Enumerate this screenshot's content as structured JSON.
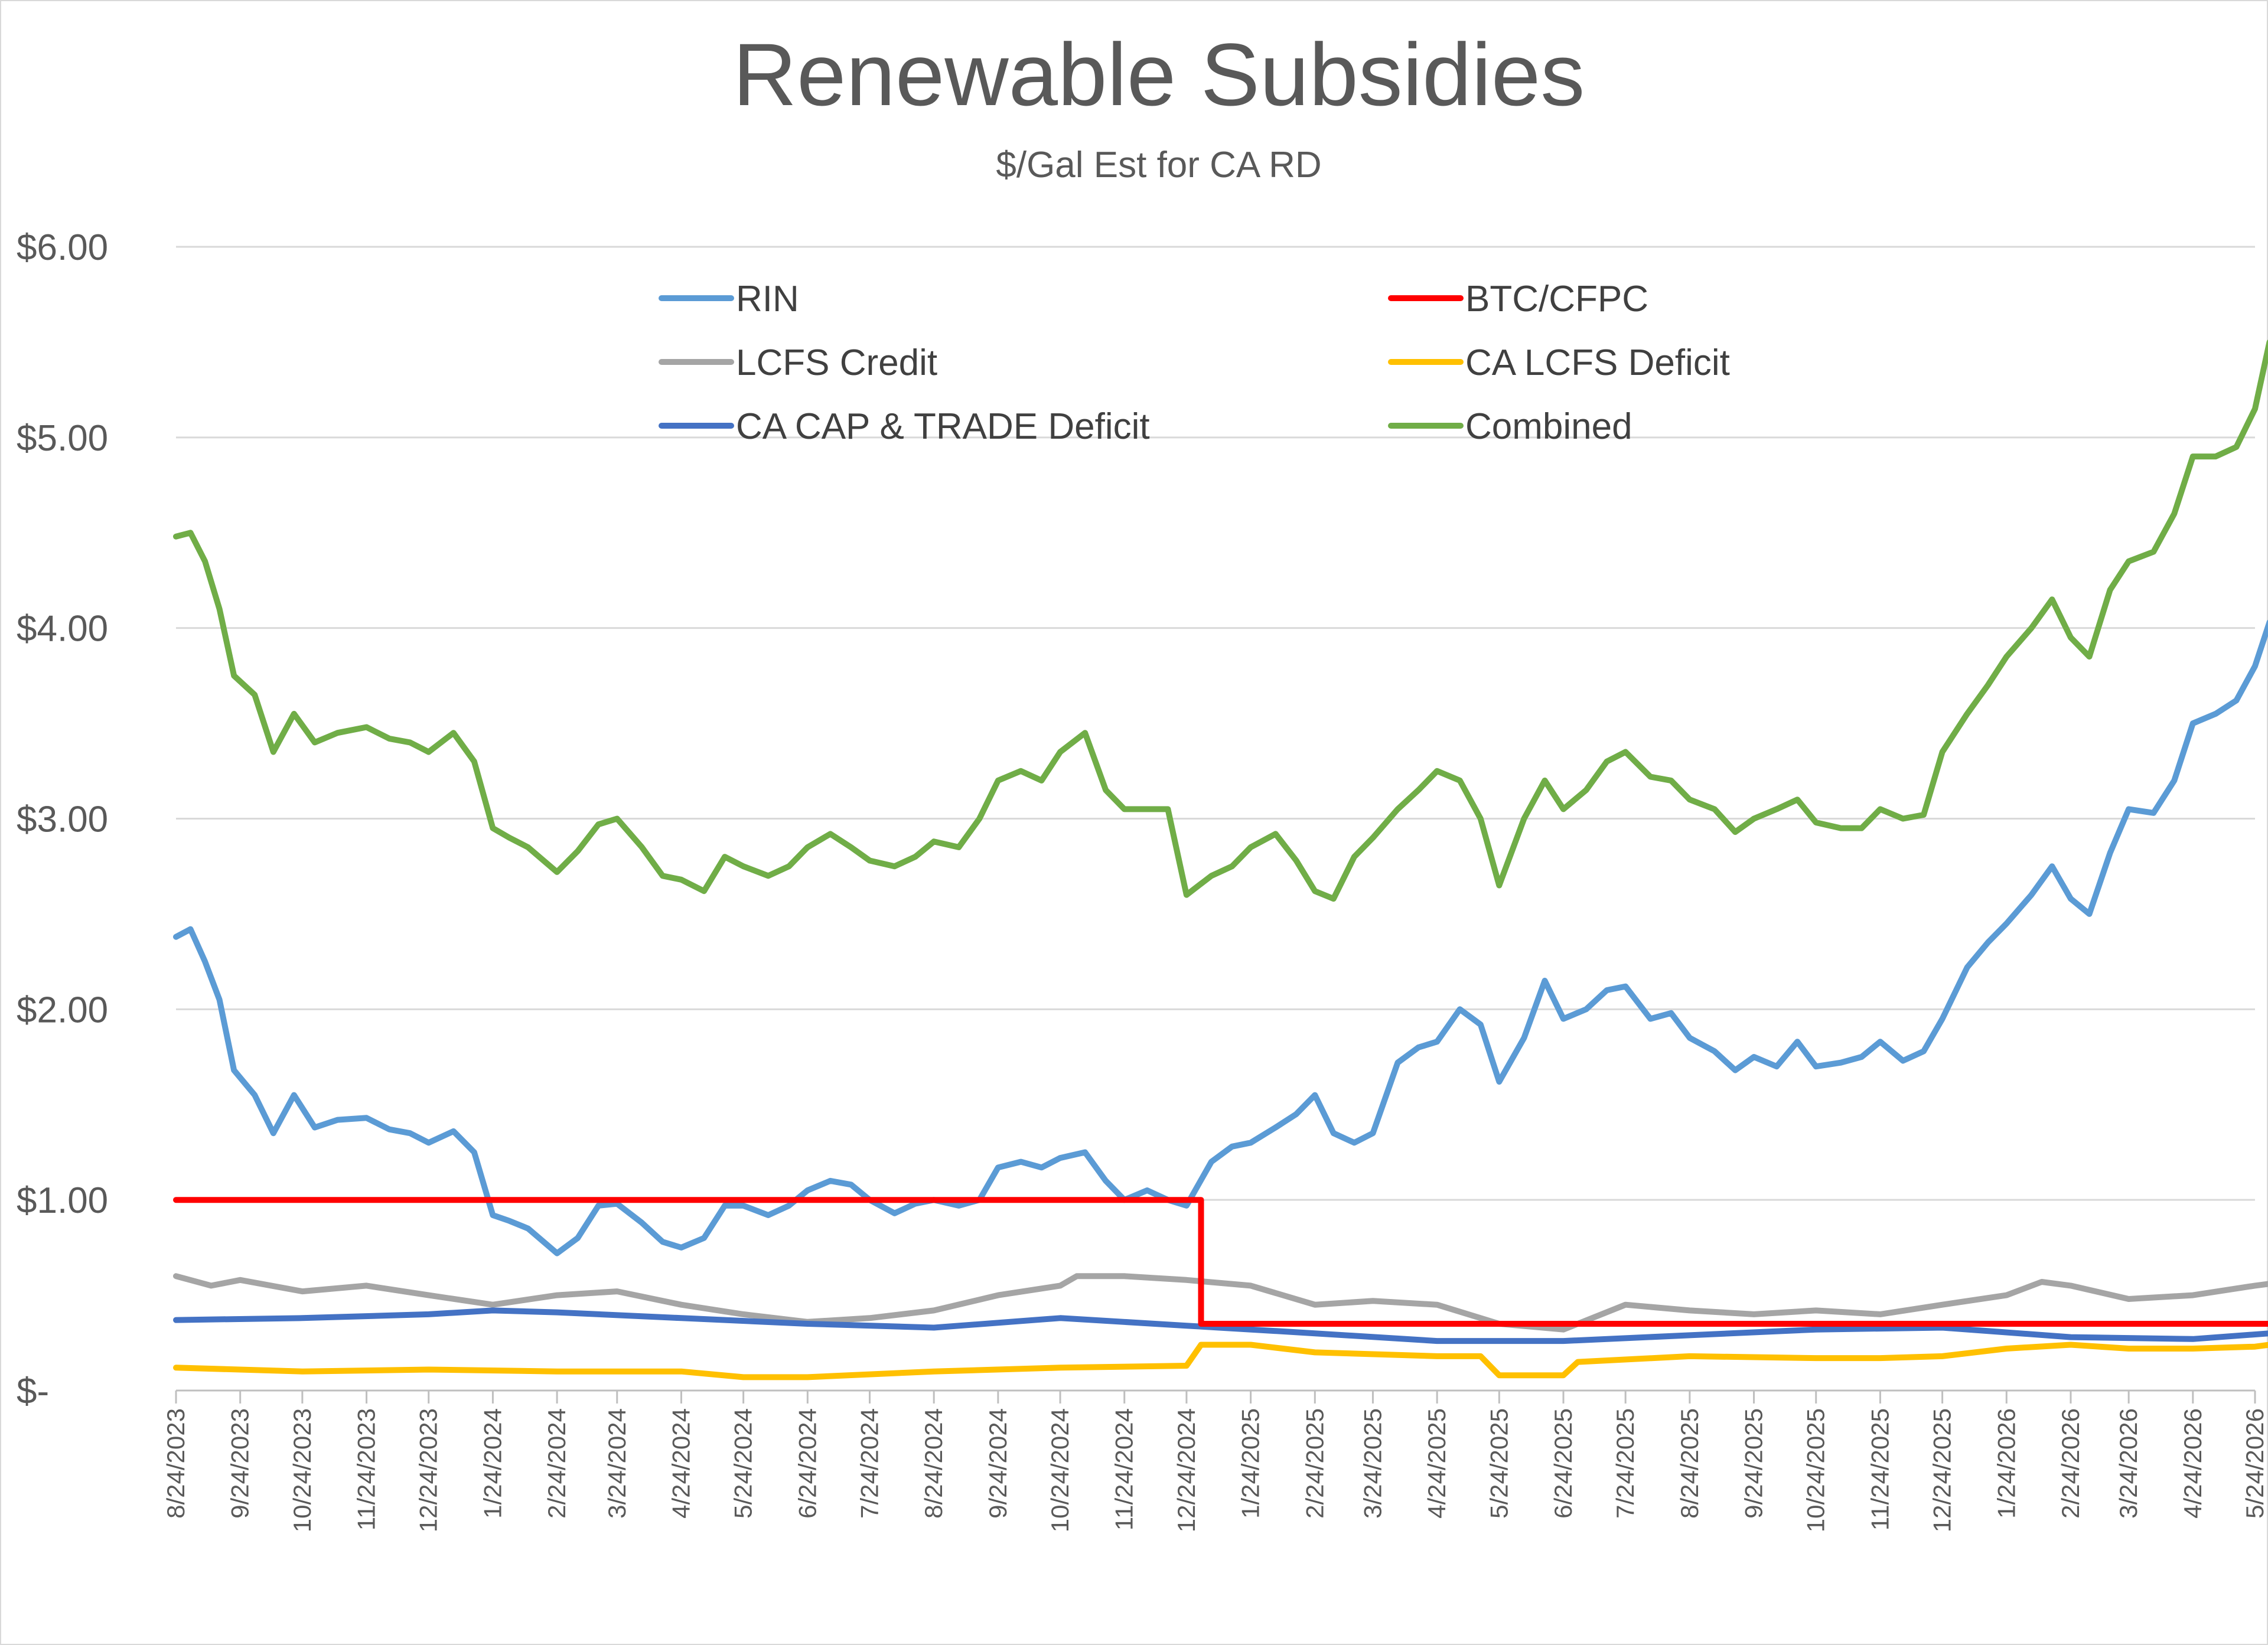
{
  "chart_data": {
    "type": "line",
    "title": "Renewable Subsidies",
    "subtitle": "$/Gal Est for CA RD",
    "xlabel": "",
    "ylabel": "",
    "ylim": [
      0,
      6
    ],
    "y_ticks": [
      {
        "value": 0,
        "label": "$-"
      },
      {
        "value": 1,
        "label": "$1.00"
      },
      {
        "value": 2,
        "label": "$2.00"
      },
      {
        "value": 3,
        "label": "$3.00"
      },
      {
        "value": 4,
        "label": "$4.00"
      },
      {
        "value": 5,
        "label": "$5.00"
      },
      {
        "value": 6,
        "label": "$6.00"
      }
    ],
    "x_ticks": [
      "8/24/2023",
      "9/24/2023",
      "10/24/2023",
      "11/24/2023",
      "12/24/2023",
      "1/24/2024",
      "2/24/2024",
      "3/24/2024",
      "4/24/2024",
      "5/24/2024",
      "6/24/2024",
      "7/24/2024",
      "8/24/2024",
      "9/24/2024",
      "10/24/2024",
      "11/24/2024",
      "12/24/2024",
      "1/24/2025",
      "2/24/2025",
      "3/24/2025",
      "4/24/2025",
      "5/24/2025",
      "6/24/2025",
      "7/24/2025",
      "8/24/2025",
      "9/24/2025",
      "10/24/2025",
      "11/24/2025",
      "12/24/2025",
      "1/24/2026",
      "2/24/2026",
      "3/24/2026",
      "4/24/2026",
      "5/24/2026"
    ],
    "grid": true,
    "legend_position": "top",
    "series": [
      {
        "name": "RIN",
        "color": "#5b9bd5",
        "x": [
          "8/24/2023",
          "8/31/2023",
          "9/7/2023",
          "9/14/2023",
          "9/21/2023",
          "10/1/2023",
          "10/10/2023",
          "10/20/2023",
          "10/30/2023",
          "11/10/2023",
          "11/24/2023",
          "12/5/2023",
          "12/15/2023",
          "12/24/2023",
          "1/5/2024",
          "1/15/2024",
          "1/24/2024",
          "2/1/2024",
          "2/10/2024",
          "2/24/2024",
          "3/5/2024",
          "3/15/2024",
          "3/24/2024",
          "4/5/2024",
          "4/15/2024",
          "4/24/2024",
          "5/5/2024",
          "5/15/2024",
          "5/24/2024",
          "6/5/2024",
          "6/15/2024",
          "6/24/2024",
          "7/5/2024",
          "7/15/2024",
          "7/24/2024",
          "8/5/2024",
          "8/15/2024",
          "8/24/2024",
          "9/5/2024",
          "9/15/2024",
          "9/24/2024",
          "10/5/2024",
          "10/15/2024",
          "10/24/2024",
          "11/5/2024",
          "11/15/2024",
          "11/24/2024",
          "12/5/2024",
          "12/15/2024",
          "12/24/2024",
          "1/5/2025",
          "1/15/2025",
          "1/24/2025",
          "2/5/2025",
          "2/15/2025",
          "2/24/2025",
          "3/5/2025",
          "3/15/2025",
          "3/24/2025",
          "4/5/2025",
          "4/15/2025",
          "4/24/2025",
          "5/5/2025",
          "5/15/2025",
          "5/24/2025",
          "6/5/2025",
          "6/15/2025",
          "6/24/2025",
          "7/5/2025",
          "7/15/2025",
          "7/24/2025",
          "8/5/2025",
          "8/15/2025",
          "8/24/2025",
          "9/5/2025",
          "9/15/2025",
          "9/24/2025",
          "10/5/2025",
          "10/15/2025",
          "10/24/2025",
          "11/5/2025",
          "11/15/2025",
          "11/24/2025",
          "12/5/2025",
          "12/15/2025",
          "12/24/2025",
          "1/5/2026",
          "1/15/2026",
          "1/24/2026",
          "2/5/2026",
          "2/15/2026",
          "2/24/2026",
          "3/5/2026",
          "3/15/2026",
          "3/24/2026",
          "4/5/2026",
          "4/15/2026",
          "4/24/2026",
          "5/5/2026",
          "5/15/2026",
          "5/24/2026",
          "5/31/2026"
        ],
        "values": [
          2.38,
          2.42,
          2.25,
          2.05,
          1.68,
          1.55,
          1.35,
          1.55,
          1.38,
          1.42,
          1.43,
          1.37,
          1.35,
          1.3,
          1.36,
          1.25,
          0.92,
          0.89,
          0.85,
          0.72,
          0.8,
          0.97,
          0.98,
          0.88,
          0.78,
          0.75,
          0.8,
          0.97,
          0.97,
          0.92,
          0.97,
          1.05,
          1.1,
          1.08,
          1.0,
          0.93,
          0.98,
          1.0,
          0.97,
          1.0,
          1.17,
          1.2,
          1.17,
          1.22,
          1.25,
          1.1,
          1.0,
          1.05,
          1.0,
          0.97,
          1.2,
          1.28,
          1.3,
          1.38,
          1.45,
          1.55,
          1.35,
          1.3,
          1.35,
          1.72,
          1.8,
          1.83,
          2.0,
          1.92,
          1.62,
          1.85,
          2.15,
          1.95,
          2.0,
          2.1,
          2.12,
          1.95,
          1.98,
          1.85,
          1.78,
          1.68,
          1.75,
          1.7,
          1.83,
          1.7,
          1.72,
          1.75,
          1.83,
          1.73,
          1.78,
          1.95,
          2.22,
          2.35,
          2.45,
          2.6,
          2.75,
          2.58,
          2.5,
          2.82,
          3.05,
          3.03,
          3.2,
          3.5,
          3.55,
          3.62,
          3.8,
          4.03
        ]
      },
      {
        "name": "BTC/CFPC",
        "color": "#ff0000",
        "x": [
          "8/24/2023",
          "12/31/2024",
          "12/31/2024",
          "5/31/2026"
        ],
        "values": [
          1.0,
          1.0,
          0.35,
          0.35
        ]
      },
      {
        "name": "LCFS Credit",
        "color": "#a5a5a5",
        "x": [
          "8/24/2023",
          "9/10/2023",
          "9/24/2023",
          "10/24/2023",
          "11/24/2023",
          "12/24/2023",
          "1/24/2024",
          "2/24/2024",
          "3/24/2024",
          "4/24/2024",
          "5/24/2024",
          "6/24/2024",
          "7/24/2024",
          "8/24/2024",
          "9/24/2024",
          "10/24/2024",
          "11/1/2024",
          "11/24/2024",
          "12/24/2024",
          "1/24/2025",
          "2/24/2025",
          "3/24/2025",
          "4/24/2025",
          "5/24/2025",
          "6/24/2025",
          "7/24/2025",
          "8/24/2025",
          "9/24/2025",
          "10/24/2025",
          "11/24/2025",
          "12/24/2025",
          "1/24/2026",
          "2/10/2026",
          "2/24/2026",
          "3/24/2026",
          "4/24/2026",
          "5/24/2026",
          "5/31/2026"
        ],
        "values": [
          0.6,
          0.55,
          0.58,
          0.52,
          0.55,
          0.5,
          0.45,
          0.5,
          0.52,
          0.45,
          0.4,
          0.36,
          0.38,
          0.42,
          0.5,
          0.55,
          0.6,
          0.6,
          0.58,
          0.55,
          0.45,
          0.47,
          0.45,
          0.35,
          0.32,
          0.45,
          0.42,
          0.4,
          0.42,
          0.4,
          0.45,
          0.5,
          0.57,
          0.55,
          0.48,
          0.5,
          0.55,
          0.56
        ]
      },
      {
        "name": "CA LCFS Deficit",
        "color": "#ffc000",
        "x": [
          "8/24/2023",
          "10/24/2023",
          "12/24/2023",
          "2/24/2024",
          "4/24/2024",
          "5/24/2024",
          "6/24/2024",
          "8/24/2024",
          "10/24/2024",
          "12/24/2024",
          "12/31/2024",
          "1/24/2025",
          "2/24/2025",
          "4/24/2025",
          "5/15/2025",
          "5/24/2025",
          "6/24/2025",
          "7/1/2025",
          "8/24/2025",
          "10/24/2025",
          "11/24/2025",
          "12/24/2025",
          "1/24/2026",
          "2/24/2026",
          "3/24/2026",
          "4/24/2026",
          "5/24/2026",
          "5/31/2026"
        ],
        "values": [
          0.12,
          0.1,
          0.11,
          0.1,
          0.1,
          0.07,
          0.07,
          0.1,
          0.12,
          0.13,
          0.24,
          0.24,
          0.2,
          0.18,
          0.18,
          0.08,
          0.08,
          0.15,
          0.18,
          0.17,
          0.17,
          0.18,
          0.22,
          0.24,
          0.22,
          0.22,
          0.23,
          0.24
        ]
      },
      {
        "name": "CA CAP & TRADE Deficit",
        "color": "#4472c4",
        "x": [
          "8/24/2023",
          "10/24/2023",
          "12/24/2023",
          "1/24/2024",
          "2/24/2024",
          "4/24/2024",
          "6/24/2024",
          "8/24/2024",
          "10/24/2024",
          "12/24/2024",
          "2/24/2025",
          "4/24/2025",
          "6/24/2025",
          "8/24/2025",
          "10/24/2025",
          "12/24/2025",
          "2/24/2026",
          "4/24/2026",
          "5/31/2026"
        ],
        "values": [
          0.37,
          0.38,
          0.4,
          0.42,
          0.41,
          0.38,
          0.35,
          0.33,
          0.38,
          0.34,
          0.3,
          0.26,
          0.26,
          0.29,
          0.32,
          0.33,
          0.28,
          0.27,
          0.3
        ]
      },
      {
        "name": "Combined",
        "color": "#70ad47",
        "x": [
          "8/24/2023",
          "8/31/2023",
          "9/7/2023",
          "9/14/2023",
          "9/21/2023",
          "10/1/2023",
          "10/10/2023",
          "10/20/2023",
          "10/30/2023",
          "11/10/2023",
          "11/24/2023",
          "12/5/2023",
          "12/15/2023",
          "12/24/2023",
          "1/5/2024",
          "1/15/2024",
          "1/24/2024",
          "2/1/2024",
          "2/10/2024",
          "2/24/2024",
          "3/5/2024",
          "3/15/2024",
          "3/24/2024",
          "4/5/2024",
          "4/15/2024",
          "4/24/2024",
          "5/5/2024",
          "5/15/2024",
          "5/24/2024",
          "6/5/2024",
          "6/15/2024",
          "6/24/2024",
          "7/5/2024",
          "7/15/2024",
          "7/24/2024",
          "8/5/2024",
          "8/15/2024",
          "8/24/2024",
          "9/5/2024",
          "9/15/2024",
          "9/24/2024",
          "10/5/2024",
          "10/15/2024",
          "10/24/2024",
          "11/5/2024",
          "11/15/2024",
          "11/24/2024",
          "12/5/2024",
          "12/15/2024",
          "12/24/2024",
          "1/5/2025",
          "1/15/2025",
          "1/24/2025",
          "2/5/2025",
          "2/15/2025",
          "2/24/2025",
          "3/5/2025",
          "3/15/2025",
          "3/24/2025",
          "4/5/2025",
          "4/15/2025",
          "4/24/2025",
          "5/5/2025",
          "5/15/2025",
          "5/24/2025",
          "6/5/2025",
          "6/15/2025",
          "6/24/2025",
          "7/5/2025",
          "7/15/2025",
          "7/24/2025",
          "8/5/2025",
          "8/15/2025",
          "8/24/2025",
          "9/5/2025",
          "9/15/2025",
          "9/24/2025",
          "10/5/2025",
          "10/15/2025",
          "10/24/2025",
          "11/5/2025",
          "11/15/2025",
          "11/24/2025",
          "12/5/2025",
          "12/15/2025",
          "12/24/2025",
          "1/5/2026",
          "1/15/2026",
          "1/24/2026",
          "2/5/2026",
          "2/15/2026",
          "2/24/2026",
          "3/5/2026",
          "3/15/2026",
          "3/24/2026",
          "4/5/2026",
          "4/15/2026",
          "4/24/2026",
          "5/5/2026",
          "5/15/2026",
          "5/24/2026",
          "5/31/2026"
        ],
        "values": [
          4.48,
          4.5,
          4.35,
          4.1,
          3.75,
          3.65,
          3.35,
          3.55,
          3.4,
          3.45,
          3.48,
          3.42,
          3.4,
          3.35,
          3.45,
          3.3,
          2.95,
          2.9,
          2.85,
          2.72,
          2.83,
          2.97,
          3.0,
          2.85,
          2.7,
          2.68,
          2.62,
          2.8,
          2.75,
          2.7,
          2.75,
          2.85,
          2.92,
          2.85,
          2.78,
          2.75,
          2.8,
          2.88,
          2.85,
          3.0,
          3.2,
          3.25,
          3.2,
          3.35,
          3.45,
          3.15,
          3.05,
          3.05,
          3.05,
          2.6,
          2.7,
          2.75,
          2.85,
          2.92,
          2.78,
          2.62,
          2.58,
          2.8,
          2.9,
          3.05,
          3.15,
          3.25,
          3.2,
          3.0,
          2.65,
          3.0,
          3.2,
          3.05,
          3.15,
          3.3,
          3.35,
          3.22,
          3.2,
          3.1,
          3.05,
          2.93,
          3.0,
          3.05,
          3.1,
          2.98,
          2.95,
          2.95,
          3.05,
          3.0,
          3.02,
          3.35,
          3.55,
          3.7,
          3.85,
          4.0,
          4.15,
          3.95,
          3.85,
          4.2,
          4.35,
          4.4,
          4.6,
          4.9,
          4.9,
          4.95,
          5.15,
          5.5
        ]
      }
    ]
  }
}
